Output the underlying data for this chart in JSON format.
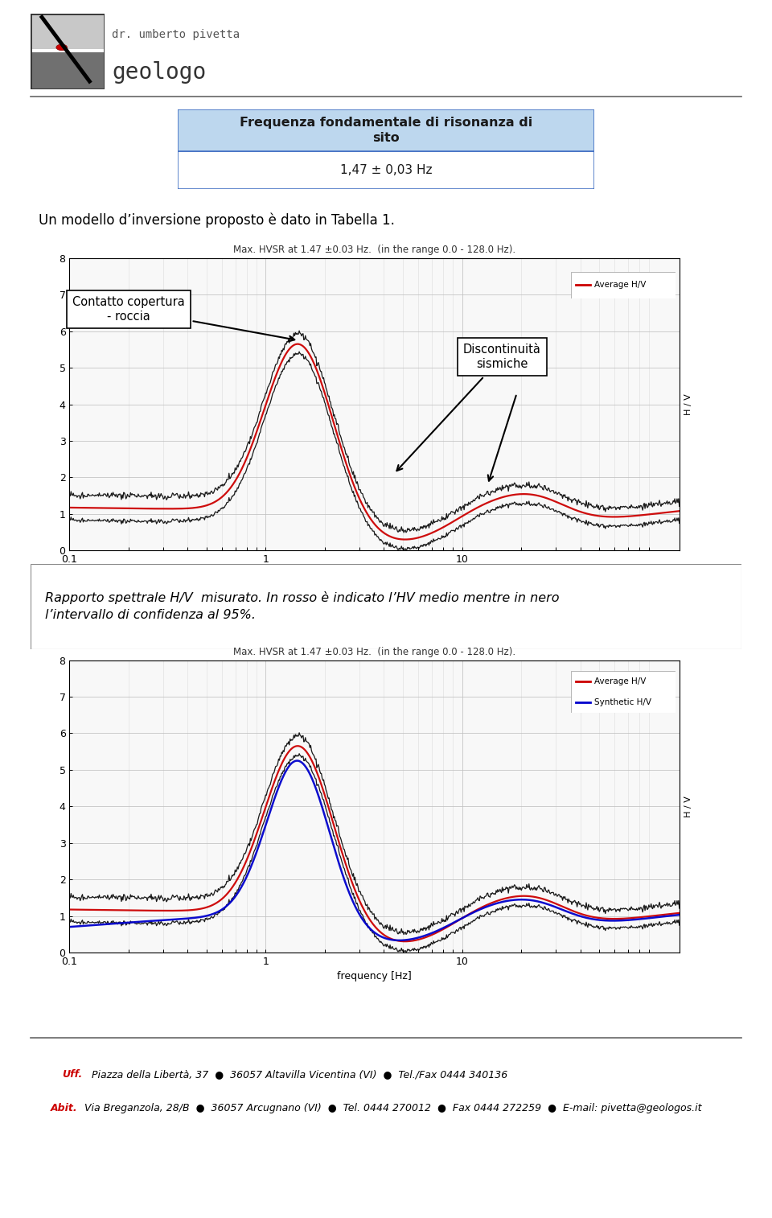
{
  "title_box_text_line1": "Frequenza fondamentale di risonanza di",
  "title_box_text_line2": "sito",
  "subtitle_box_text": "1,47 ± 0,03 Hz",
  "text_below_box": "Un modello d’inversione proposto è dato in Tabella 1.",
  "plot1_title": "Max. HVSR at 1.47 ±0.03 Hz.  (in the range 0.0 - 128.0 Hz).",
  "plot2_title": "Max. HVSR at 1.47 ±0.03 Hz.  (in the range 0.0 - 128.0 Hz).",
  "ylabel": "H / V",
  "xlabel": "frequency [Hz]",
  "xlim": [
    0.1,
    128.0
  ],
  "ylim": [
    0,
    8
  ],
  "yticks": [
    0,
    1,
    2,
    3,
    4,
    5,
    6,
    7,
    8
  ],
  "legend1_label": "Average H/V",
  "legend2_labels": [
    "Average H/V",
    "Synthetic H/V"
  ],
  "annotation1_text": "Contatto copertura\n- roccia",
  "annotation2_text": "Discontinuità\nsismiche",
  "rapporto_text": "Rapporto spettrale H/V  misurato. In rosso è indicato l’HV medio mentre in nero\nl’intervallo di confidenza al 95%.",
  "footer_line1_red": "Uff.",
  "footer_line1_black": " Piazza della Libertà, 37  ●  36057 Altavilla Vicentina (VI)  ●  Tel./Fax 0444 340136",
  "footer_line2_red": "Abit.",
  "footer_line2_black": " Via Breganzola, 28/B  ●  36057 Arcugnano (VI)  ●  Tel. 0444 270012  ●  Fax 0444 272259  ●  E-mail: pivetta@geologos.it",
  "red_color": "#cc0000",
  "black_color": "#000000",
  "dark_blue_color": "#0000CC",
  "title_bg_color": "#BDD7EE",
  "bg_color": "#ffffff",
  "plot_bg": "#f8f8f8",
  "grid_color": "#c0c0c0",
  "title_border_color": "#4472C4"
}
